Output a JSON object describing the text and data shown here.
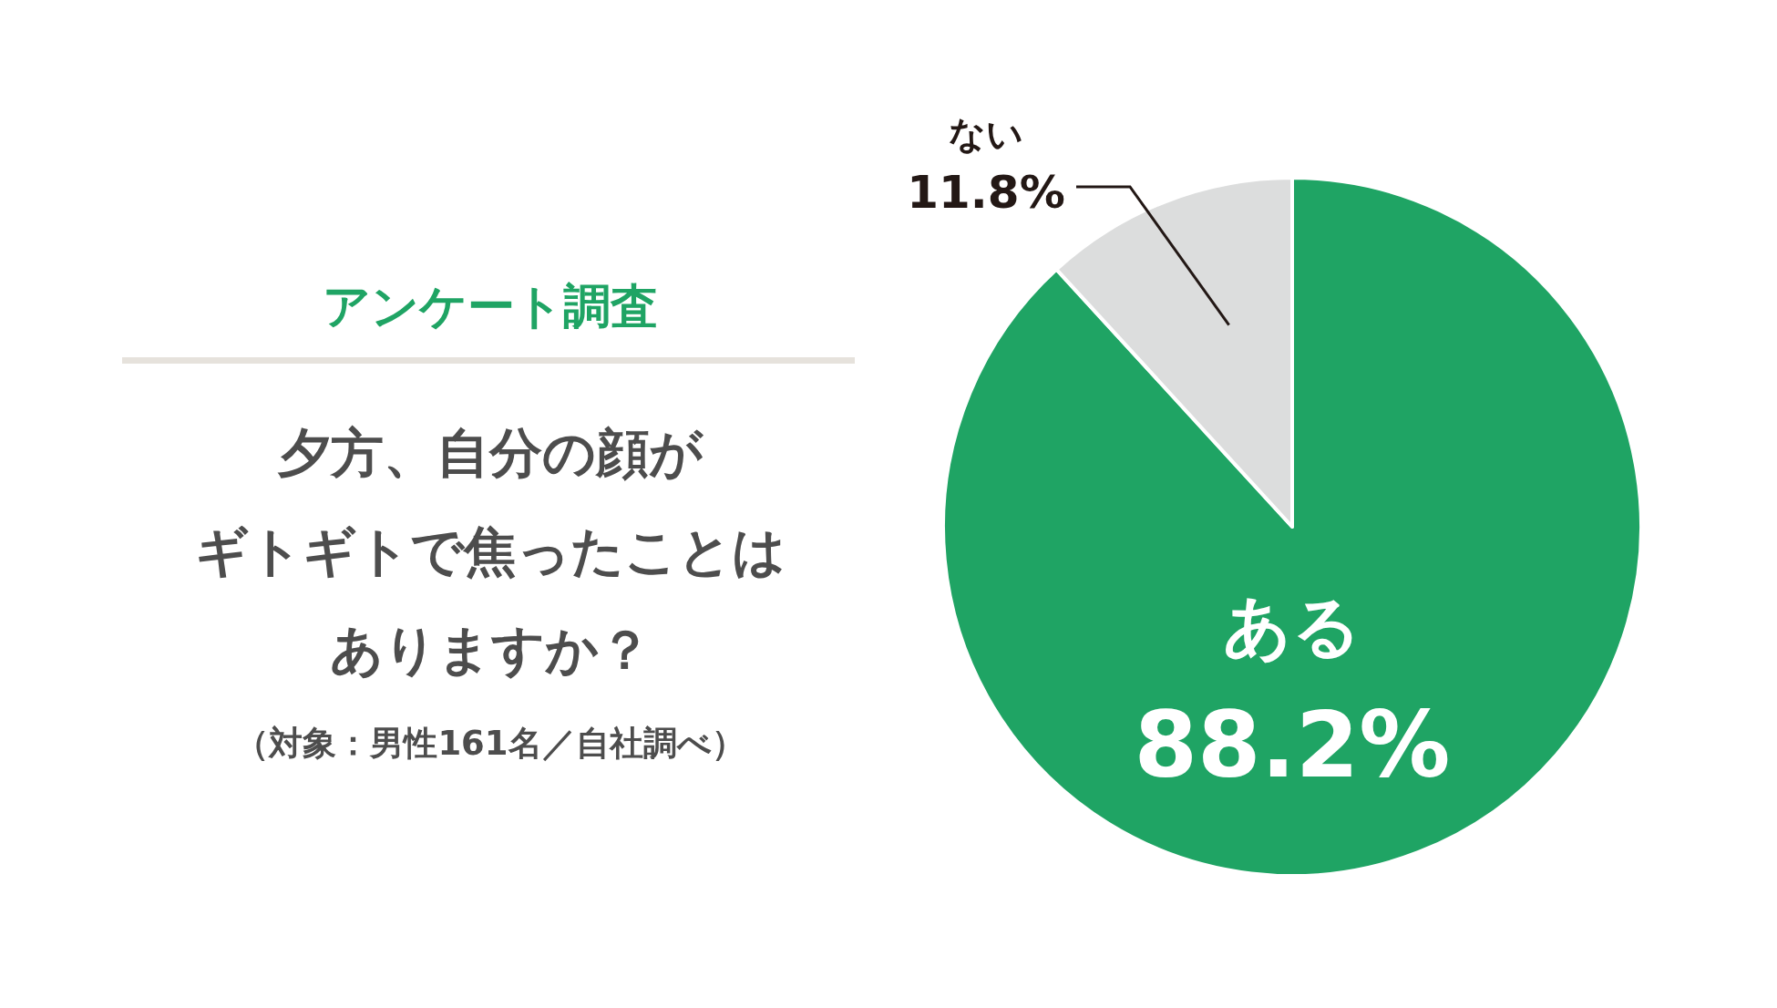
{
  "chart_data": {
    "type": "pie",
    "title": "アンケート調査",
    "subtitle": "夕方、自分の顔がギトギトで焦ったことはありますか？",
    "annotations": [
      "（対象：男性161名／自社調べ）"
    ],
    "categories": [
      "ある",
      "ない"
    ],
    "values": [
      88.2,
      11.8
    ],
    "colors": [
      "#1fa464",
      "#dcdddd"
    ],
    "value_labels": [
      "88.2%",
      "11.8%"
    ]
  }
}
